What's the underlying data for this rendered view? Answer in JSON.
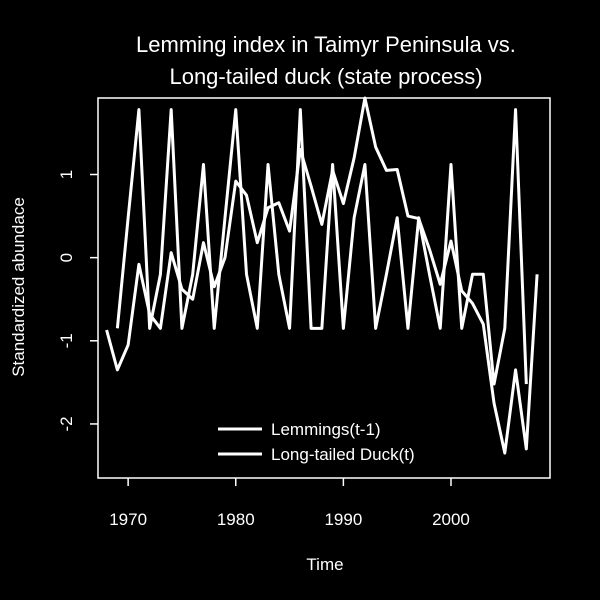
{
  "colors": {
    "background": "#000000",
    "foreground": "#ffffff"
  },
  "chart_data": {
    "type": "line",
    "title": "Lemming index in Taimyr Peninsula vs.",
    "subtitle": "Long-tailed duck (state process)",
    "xlabel": "Time",
    "ylabel": "Standardized abundace",
    "xlim": [
      1967.2,
      2009.2
    ],
    "ylim": [
      -2.65,
      1.92
    ],
    "xticks": [
      1970,
      1980,
      1990,
      2000
    ],
    "xtick_labels": [
      "1970",
      "1980",
      "1990",
      "2000"
    ],
    "yticks": [
      -2,
      -1,
      0,
      1
    ],
    "ytick_labels": [
      "-2",
      "-1",
      "0",
      "1"
    ],
    "grid": false,
    "legend_position": "bottom-center",
    "series": [
      {
        "name": "Lemmings(t-1)",
        "color": "#ffffff",
        "x": [
          1969,
          1970,
          1971,
          1972,
          1973,
          1974,
          1975,
          1976,
          1977,
          1978,
          1979,
          1980,
          1981,
          1982,
          1983,
          1984,
          1985,
          1986,
          1987,
          1988,
          1989,
          1990,
          1991,
          1992,
          1993,
          1994,
          1995,
          1996,
          1997,
          1998,
          1999,
          2000,
          2001,
          2002,
          2003,
          2004,
          2005,
          2006,
          2007
        ],
        "values": [
          -0.85,
          0.48,
          1.78,
          -0.85,
          -0.2,
          1.78,
          -0.85,
          -0.2,
          1.12,
          -0.85,
          0.48,
          1.78,
          -0.2,
          -0.85,
          1.12,
          -0.2,
          -0.85,
          1.78,
          -0.85,
          -0.85,
          1.12,
          -0.85,
          0.48,
          1.12,
          -0.85,
          -0.2,
          0.48,
          -0.85,
          0.48,
          -0.2,
          -0.85,
          1.12,
          -0.85,
          -0.2,
          -0.2,
          -1.52,
          -0.85,
          1.78,
          -1.52
        ]
      },
      {
        "name": "Long-tailed Duck(t)",
        "color": "#ffffff",
        "x": [
          1968,
          1969,
          1970,
          1971,
          1972,
          1973,
          1974,
          1975,
          1976,
          1977,
          1978,
          1979,
          1980,
          1981,
          1982,
          1983,
          1984,
          1985,
          1986,
          1987,
          1988,
          1989,
          1990,
          1991,
          1992,
          1993,
          1994,
          1995,
          1996,
          1997,
          1998,
          1999,
          2000,
          2001,
          2002,
          2003,
          2004,
          2005,
          2006,
          2007,
          2008
        ],
        "values": [
          -0.87,
          -1.35,
          -1.05,
          -0.08,
          -0.68,
          -0.85,
          0.06,
          -0.38,
          -0.5,
          0.18,
          -0.35,
          0.0,
          0.92,
          0.75,
          0.18,
          0.6,
          0.66,
          0.32,
          1.3,
          0.86,
          0.4,
          1.05,
          0.65,
          1.2,
          1.92,
          1.33,
          1.05,
          1.06,
          0.5,
          0.47,
          0.1,
          -0.32,
          0.2,
          -0.4,
          -0.55,
          -0.8,
          -1.75,
          -2.35,
          -1.35,
          -2.3,
          -0.2
        ]
      }
    ]
  }
}
